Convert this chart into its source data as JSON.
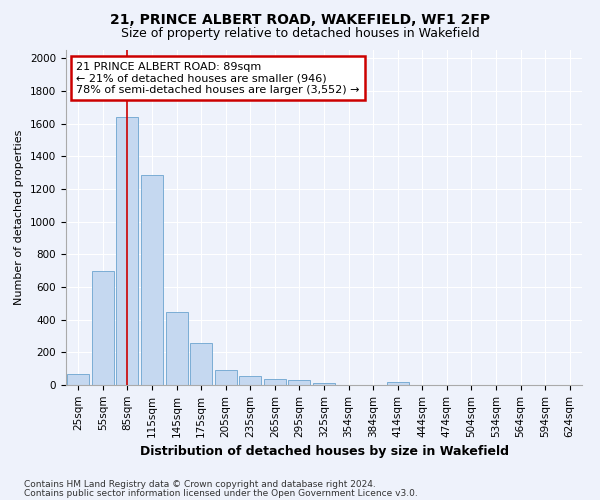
{
  "title": "21, PRINCE ALBERT ROAD, WAKEFIELD, WF1 2FP",
  "subtitle": "Size of property relative to detached houses in Wakefield",
  "xlabel": "Distribution of detached houses by size in Wakefield",
  "ylabel": "Number of detached properties",
  "footnote1": "Contains HM Land Registry data © Crown copyright and database right 2024.",
  "footnote2": "Contains public sector information licensed under the Open Government Licence v3.0.",
  "bar_labels": [
    "25sqm",
    "55sqm",
    "85sqm",
    "115sqm",
    "145sqm",
    "175sqm",
    "205sqm",
    "235sqm",
    "265sqm",
    "295sqm",
    "325sqm",
    "354sqm",
    "384sqm",
    "414sqm",
    "444sqm",
    "474sqm",
    "504sqm",
    "534sqm",
    "564sqm",
    "594sqm",
    "624sqm"
  ],
  "bar_values": [
    65,
    695,
    1640,
    1285,
    445,
    255,
    90,
    55,
    35,
    28,
    15,
    0,
    0,
    18,
    0,
    0,
    0,
    0,
    0,
    0,
    0
  ],
  "bar_color": "#c5d8f0",
  "bar_edge_color": "#7badd4",
  "vline_x_index": 2,
  "vline_color": "#cc0000",
  "annotation_title": "21 PRINCE ALBERT ROAD: 89sqm",
  "annotation_line1": "← 21% of detached houses are smaller (946)",
  "annotation_line2": "78% of semi-detached houses are larger (3,552) →",
  "annotation_box_color": "#ffffff",
  "annotation_box_edge": "#cc0000",
  "ylim": [
    0,
    2050
  ],
  "yticks": [
    0,
    200,
    400,
    600,
    800,
    1000,
    1200,
    1400,
    1600,
    1800,
    2000
  ],
  "background_color": "#eef2fb",
  "grid_color": "#ffffff",
  "title_fontsize": 10,
  "subtitle_fontsize": 9,
  "ylabel_fontsize": 8,
  "xlabel_fontsize": 9,
  "tick_fontsize": 7.5,
  "annotation_fontsize": 8,
  "footnote_fontsize": 6.5
}
